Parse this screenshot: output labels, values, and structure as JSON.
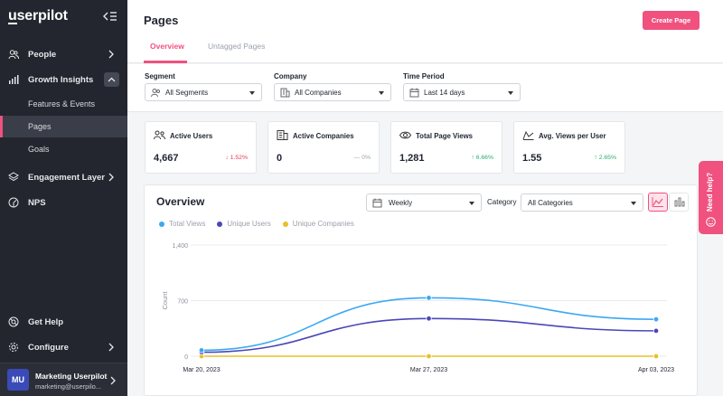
{
  "app": {
    "logo_text": "userpilot",
    "logo_initial": "u",
    "logo_rest": "serpilot"
  },
  "sidebar": {
    "items": [
      {
        "label": "People",
        "icon": "people-icon"
      },
      {
        "label": "Growth Insights",
        "icon": "bar-chart-icon",
        "expanded": true
      },
      {
        "label": "Engagement Layer",
        "icon": "layers-icon"
      },
      {
        "label": "NPS",
        "icon": "gauge-icon"
      }
    ],
    "sub_items": [
      {
        "label": "Features & Events"
      },
      {
        "label": "Pages",
        "active": true
      },
      {
        "label": "Goals"
      }
    ],
    "bottom": [
      {
        "label": "Get Help",
        "icon": "lifebuoy-icon"
      },
      {
        "label": "Configure",
        "icon": "gear-icon"
      }
    ],
    "user": {
      "initials": "MU",
      "name": "Marketing Userpilot",
      "email": "marketing@userpilo..."
    }
  },
  "header": {
    "title": "Pages",
    "create_label": "Create Page",
    "tabs": [
      {
        "label": "Overview",
        "active": true
      },
      {
        "label": "Untagged Pages",
        "active": false
      }
    ]
  },
  "filters": {
    "segment": {
      "label": "Segment",
      "value": "All Segments"
    },
    "company": {
      "label": "Company",
      "value": "All Companies"
    },
    "period": {
      "label": "Time Period",
      "value": "Last 14 days"
    }
  },
  "stats": [
    {
      "title": "Active Users",
      "value": "4,667",
      "change": "1.52%",
      "direction": "down",
      "icon": "users-icon"
    },
    {
      "title": "Active Companies",
      "value": "0",
      "change": "0%",
      "direction": "flat",
      "icon": "building-icon"
    },
    {
      "title": "Total Page Views",
      "value": "1,281",
      "change": "6.66%",
      "direction": "up",
      "icon": "eye-icon"
    },
    {
      "title": "Avg. Views per User",
      "value": "1.55",
      "change": "2.65%",
      "direction": "up",
      "icon": "trend-icon"
    }
  ],
  "overview": {
    "title": "Overview",
    "interval": "Weekly",
    "category_label": "Category",
    "category_value": "All Categories"
  },
  "need_help": "Need help?",
  "colors": {
    "accent": "#f0517f",
    "sidebar_bg": "#23262e",
    "total_views": "#3aa8f2",
    "unique_users": "#4a47b8",
    "unique_companies": "#e8c02a",
    "up": "#2bab6e",
    "down": "#e23b55"
  },
  "chart_data": {
    "type": "line",
    "x": [
      "Mar 20, 2023",
      "Mar 27, 2023",
      "Apr 03, 2023"
    ],
    "yticks": [
      "1,400",
      "700",
      "0"
    ],
    "ylim": [
      0,
      1400
    ],
    "ylabel": "Count",
    "series": [
      {
        "name": "Total Views",
        "values": [
          75,
          735,
          465
        ],
        "color": "#3aa8f2"
      },
      {
        "name": "Unique Users",
        "values": [
          50,
          475,
          320
        ],
        "color": "#4a47b8"
      },
      {
        "name": "Unique Companies",
        "values": [
          0,
          0,
          0
        ],
        "color": "#e8c02a"
      }
    ],
    "legend": "top-left",
    "grid": true
  }
}
